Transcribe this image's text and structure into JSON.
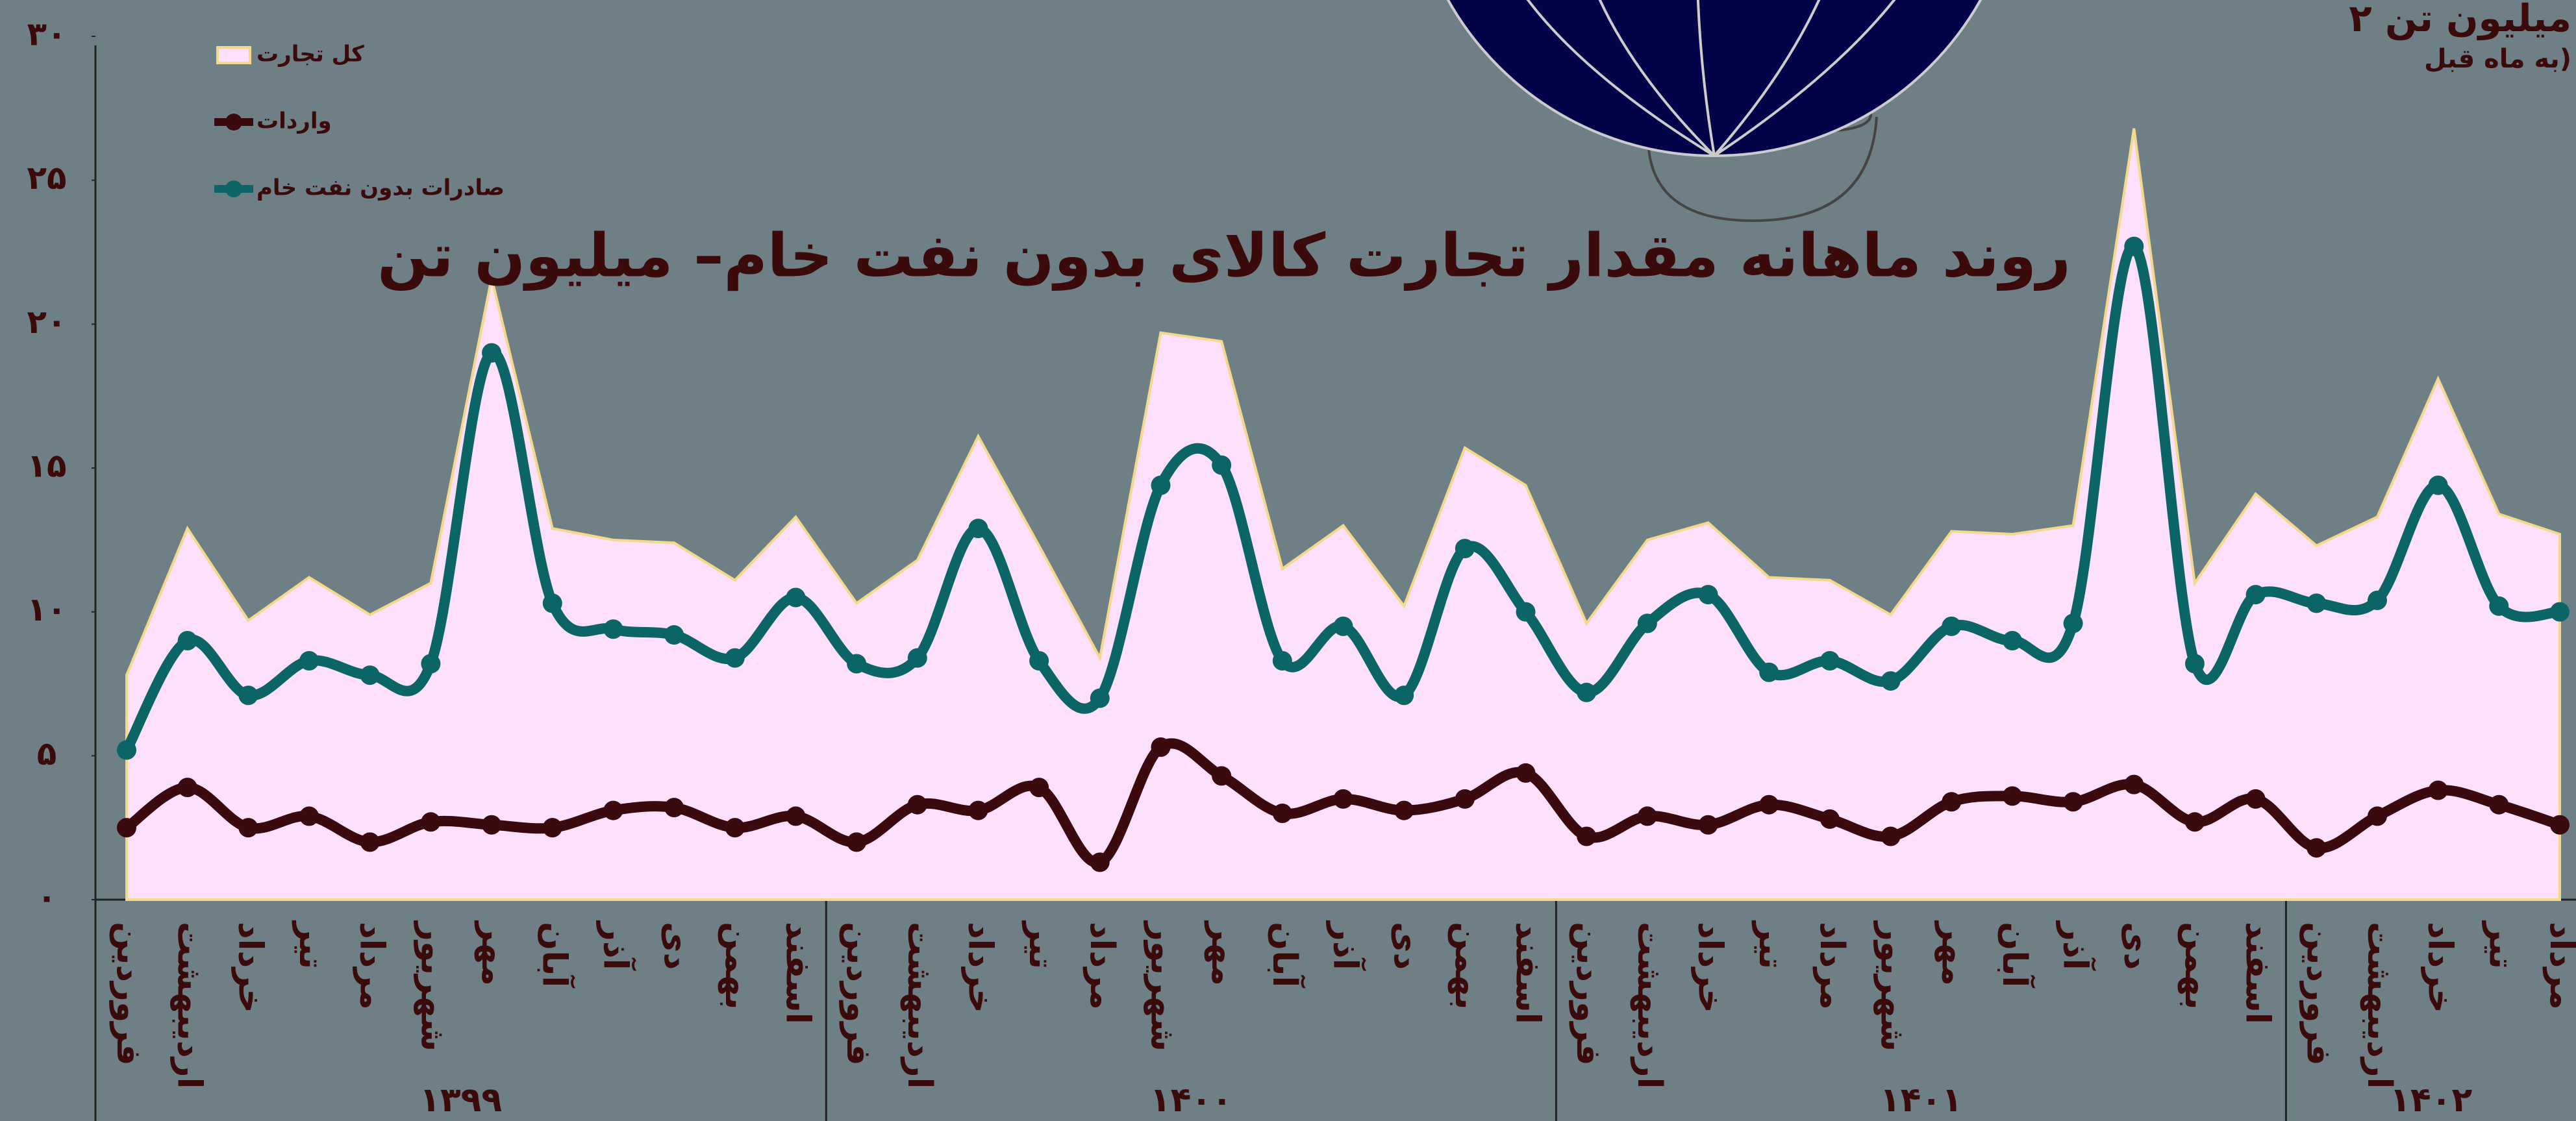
{
  "chart_data": {
    "type": "line",
    "title": "روند ماهانه مقدار تجارت کالای بدون نفت خام– میلیون تن",
    "annotations": [
      "۲ میلیون تن",
      "به ماه قبل)"
    ],
    "groups": [
      {
        "label": "۱۳۹۹",
        "months": [
          "فروردین",
          "اردیبهشت",
          "خرداد",
          "تیر",
          "مرداد",
          "شهریور",
          "مهر",
          "آبان",
          "آذر",
          "دی",
          "بهمن",
          "اسفند"
        ]
      },
      {
        "label": "۱۴۰۰",
        "months": [
          "فروردین",
          "اردیبهشت",
          "خرداد",
          "تیر",
          "مرداد",
          "شهریور",
          "مهر",
          "آبان",
          "آذر",
          "دی",
          "بهمن",
          "اسفند"
        ]
      },
      {
        "label": "۱۴۰۱",
        "months": [
          "فروردین",
          "اردیبهشت",
          "خرداد",
          "تیر",
          "مرداد",
          "شهریور",
          "مهر",
          "آبان",
          "آذر",
          "دی",
          "بهمن",
          "اسفند"
        ]
      },
      {
        "label": "۱۴۰۲",
        "months": [
          "فروردین",
          "اردیبهشت",
          "خرداد",
          "تیر",
          "مرداد"
        ]
      }
    ],
    "series": [
      {
        "name": "کل تجارت",
        "kind": "area",
        "color": "#fde0fb",
        "edge": "#f5d98a",
        "values": [
          7.8,
          12.9,
          9.7,
          11.2,
          9.9,
          11.0,
          21.6,
          12.9,
          12.5,
          12.4,
          11.1,
          13.3,
          10.3,
          11.8,
          16.1,
          12.3,
          8.4,
          19.7,
          19.4,
          11.5,
          13.0,
          10.2,
          15.7,
          14.4,
          9.6,
          12.5,
          13.1,
          11.2,
          11.1,
          9.9,
          12.8,
          12.7,
          13.0,
          26.8,
          11.0,
          14.1,
          12.3,
          13.3,
          18.1,
          13.4,
          12.7
        ]
      },
      {
        "name": "واردات",
        "kind": "line",
        "color": "#3a0a0e",
        "values": [
          2.5,
          3.9,
          2.5,
          2.9,
          2.0,
          2.7,
          2.6,
          2.5,
          3.1,
          3.2,
          2.5,
          2.9,
          2.0,
          3.3,
          3.1,
          3.9,
          1.3,
          5.3,
          4.3,
          3.0,
          3.5,
          3.1,
          3.5,
          4.4,
          2.2,
          2.9,
          2.6,
          3.3,
          2.8,
          2.2,
          3.4,
          3.6,
          3.4,
          4.0,
          2.7,
          3.5,
          1.8,
          2.9,
          3.8,
          3.3,
          2.6
        ]
      },
      {
        "name": "صادرات بدون نفت خام",
        "kind": "line",
        "color": "#0b6466",
        "values": [
          5.2,
          9.0,
          7.1,
          8.3,
          7.8,
          8.2,
          19.0,
          10.3,
          9.4,
          9.2,
          8.4,
          10.5,
          8.2,
          8.4,
          12.9,
          8.3,
          7.0,
          14.4,
          15.1,
          8.3,
          9.5,
          7.1,
          12.2,
          10.0,
          7.2,
          9.6,
          10.6,
          7.9,
          8.3,
          7.6,
          9.5,
          9.0,
          9.6,
          22.7,
          8.2,
          10.6,
          10.3,
          10.4,
          14.4,
          10.2,
          10.0
        ]
      }
    ],
    "ylim": [
      0,
      30
    ],
    "yticks": [
      {
        "value": 0,
        "label": "۰"
      },
      {
        "value": 5,
        "label": "۵"
      },
      {
        "value": 10,
        "label": "۱۰"
      },
      {
        "value": 15,
        "label": "۱۵"
      },
      {
        "value": 20,
        "label": "۲۰"
      },
      {
        "value": 25,
        "label": "۲۵"
      },
      {
        "value": 30,
        "label": "۳۰"
      }
    ],
    "legend": "upper left",
    "grid": false
  }
}
